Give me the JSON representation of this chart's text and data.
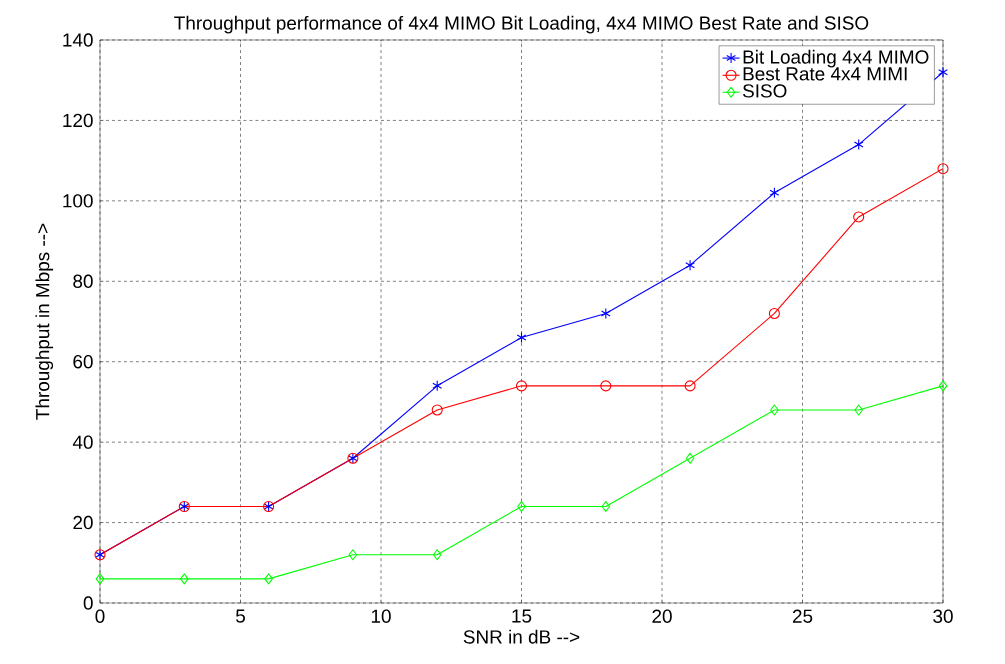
{
  "chart_data": {
    "type": "line",
    "title": "Throughput performance of 4x4 MIMO Bit Loading, 4x4 MIMO Best Rate and SISO",
    "xlabel": "SNR in dB -->",
    "ylabel": "Throughput in Mbps -->",
    "x": [
      0,
      3,
      6,
      9,
      12,
      15,
      18,
      21,
      24,
      27,
      30
    ],
    "series": [
      {
        "name": "Bit Loading 4x4 MIMO",
        "color": "#0000ff",
        "marker": "cross",
        "values": [
          12,
          24,
          24,
          36,
          54,
          66,
          72,
          84,
          102,
          114,
          132
        ]
      },
      {
        "name": "Best Rate 4x4 MIMI",
        "color": "#ff0000",
        "marker": "circle",
        "values": [
          12,
          24,
          24,
          36,
          48,
          54,
          54,
          54,
          72,
          96,
          108
        ]
      },
      {
        "name": "SISO",
        "color": "#00ff00",
        "marker": "diamond",
        "values": [
          6,
          6,
          6,
          12,
          12,
          24,
          24,
          36,
          48,
          48,
          54
        ]
      }
    ],
    "xlim": [
      0,
      30
    ],
    "ylim": [
      0,
      140
    ],
    "xticks": [
      0,
      5,
      10,
      15,
      20,
      25,
      30
    ],
    "yticks": [
      0,
      20,
      40,
      60,
      80,
      100,
      120,
      140
    ],
    "grid": true,
    "legend": "top right",
    "line_style": "solid"
  }
}
